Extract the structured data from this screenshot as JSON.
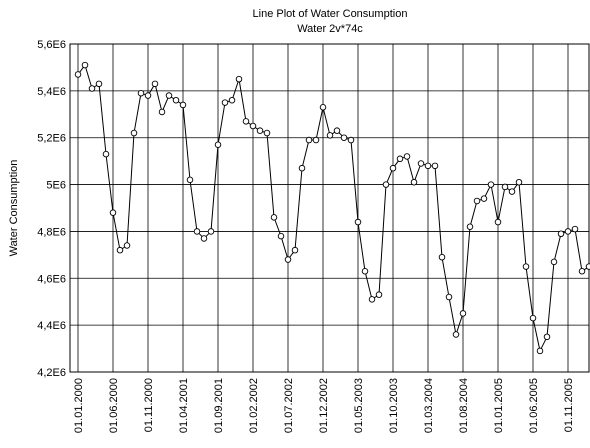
{
  "chart_data": {
    "type": "line",
    "title": "Line Plot of Water Consumption",
    "subtitle": "Water 2v*74c",
    "y_label": "Water Consumption",
    "categories": [
      "01.01.2000",
      null,
      null,
      null,
      null,
      "01.06.2000",
      null,
      null,
      null,
      null,
      "01.11.2000",
      null,
      null,
      null,
      null,
      "01.04.2001",
      null,
      null,
      null,
      null,
      "01.09.2001",
      null,
      null,
      null,
      null,
      "01.02.2002",
      null,
      null,
      null,
      null,
      "01.07.2002",
      null,
      null,
      null,
      null,
      "01.12.2002",
      null,
      null,
      null,
      null,
      "01.05.2003",
      null,
      null,
      null,
      null,
      "01.10.2003",
      null,
      null,
      null,
      null,
      "01.03.2004",
      null,
      null,
      null,
      null,
      "01.08.2004",
      null,
      null,
      null,
      null,
      "01.01.2005",
      null,
      null,
      null,
      null,
      "01.06.2005",
      null,
      null,
      null,
      null,
      "01.11.2005",
      null,
      null,
      null
    ],
    "series": [
      {
        "name": "Water Consumption",
        "color": "#000000",
        "values": [
          5470000,
          5510000,
          5410000,
          5430000,
          5130000,
          4880000,
          4720000,
          4740000,
          5220000,
          5390000,
          5380000,
          5430000,
          5310000,
          5380000,
          5360000,
          5340000,
          5020000,
          4800000,
          4770000,
          4800000,
          5170000,
          5350000,
          5360000,
          5450000,
          5270000,
          5250000,
          5230000,
          5220000,
          4860000,
          4780000,
          4680000,
          4720000,
          5070000,
          5190000,
          5190000,
          5330000,
          5210000,
          5230000,
          5200000,
          5190000,
          4840000,
          4630000,
          4510000,
          4530000,
          5000000,
          5070000,
          5110000,
          5120000,
          5010000,
          5090000,
          5080000,
          5080000,
          4690000,
          4520000,
          4360000,
          4450000,
          4820000,
          4930000,
          4940000,
          5000000,
          4840000,
          4990000,
          4970000,
          5010000,
          4650000,
          4430000,
          4290000,
          4350000,
          4670000,
          4790000,
          4800000,
          4810000,
          4630000,
          4650000
        ]
      }
    ],
    "ylim": [
      4200000,
      5600000
    ],
    "yticks": [
      {
        "value": 4200000,
        "label": "4,2E6"
      },
      {
        "value": 4400000,
        "label": "4,4E6"
      },
      {
        "value": 4600000,
        "label": "4,6E6"
      },
      {
        "value": 4800000,
        "label": "4,8E6"
      },
      {
        "value": 5000000,
        "label": "5E6"
      },
      {
        "value": 5200000,
        "label": "5,2E6"
      },
      {
        "value": 5400000,
        "label": "5,4E6"
      },
      {
        "value": 5600000,
        "label": "5,6E6"
      }
    ],
    "grid": true
  }
}
